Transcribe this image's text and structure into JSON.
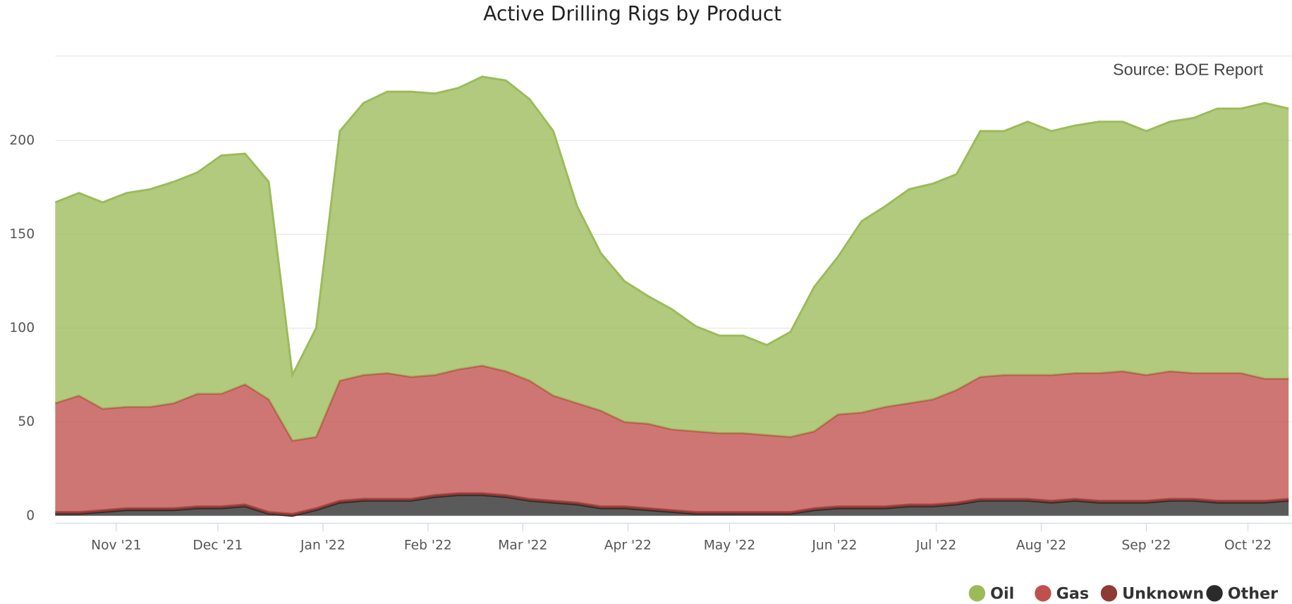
{
  "chart_data": {
    "type": "stacked_area",
    "title": "Active Drilling Rigs by Product",
    "annotation": "Source: BOE Report",
    "xlim": [
      0,
      365
    ],
    "xticks": [
      {
        "value": 18,
        "label": "Nov '21"
      },
      {
        "value": 48,
        "label": "Dec '21"
      },
      {
        "value": 79,
        "label": "Jan '22"
      },
      {
        "value": 110,
        "label": "Feb '22"
      },
      {
        "value": 138,
        "label": "Mar '22"
      },
      {
        "value": 169,
        "label": "Apr '22"
      },
      {
        "value": 199,
        "label": "May '22"
      },
      {
        "value": 230,
        "label": "Jun '22"
      },
      {
        "value": 260,
        "label": "Jul '22"
      },
      {
        "value": 291,
        "label": "Aug '22"
      },
      {
        "value": 322,
        "label": "Sep '22"
      },
      {
        "value": 352,
        "label": "Oct '22"
      }
    ],
    "ylim": [
      -4,
      245
    ],
    "yticks": [
      0,
      50,
      100,
      150,
      200
    ],
    "grid": true,
    "legend": "bottom-right",
    "x": [
      0,
      7,
      14,
      21,
      28,
      35,
      42,
      49,
      56,
      63,
      70,
      77,
      84,
      91,
      98,
      105,
      112,
      119,
      126,
      133,
      140,
      147,
      154,
      161,
      168,
      175,
      182,
      189,
      196,
      203,
      210,
      217,
      224,
      231,
      238,
      245,
      252,
      259,
      266,
      273,
      280,
      287,
      294,
      301,
      308,
      315,
      322,
      329,
      336,
      343,
      350,
      357,
      364
    ],
    "series": [
      {
        "name": "Other",
        "color": "#2b2b2b",
        "values": [
          1,
          1,
          2,
          3,
          3,
          3,
          4,
          4,
          5,
          1,
          0,
          3,
          7,
          8,
          8,
          8,
          10,
          11,
          11,
          10,
          8,
          7,
          6,
          4,
          4,
          3,
          2,
          1,
          1,
          1,
          1,
          1,
          3,
          4,
          4,
          4,
          5,
          5,
          6,
          8,
          8,
          8,
          7,
          8,
          7,
          7,
          7,
          8,
          8,
          7,
          7,
          7,
          8
        ]
      },
      {
        "name": "Unknown",
        "color": "#8e3b36",
        "values": [
          1,
          1,
          1,
          1,
          1,
          1,
          1,
          1,
          1,
          1,
          1,
          1,
          1,
          1,
          1,
          1,
          1,
          1,
          1,
          1,
          1,
          1,
          1,
          1,
          1,
          1,
          1,
          1,
          1,
          1,
          1,
          1,
          1,
          1,
          1,
          1,
          1,
          1,
          1,
          1,
          1,
          1,
          1,
          1,
          1,
          1,
          1,
          1,
          1,
          1,
          1,
          1,
          1
        ]
      },
      {
        "name": "Gas",
        "color": "#c0504d",
        "values": [
          58,
          62,
          54,
          54,
          54,
          56,
          60,
          60,
          64,
          60,
          39,
          38,
          64,
          66,
          67,
          65,
          64,
          66,
          68,
          66,
          63,
          56,
          53,
          51,
          45,
          45,
          43,
          43,
          42,
          42,
          41,
          40,
          41,
          49,
          50,
          53,
          54,
          56,
          60,
          65,
          66,
          66,
          67,
          67,
          68,
          69,
          67,
          68,
          67,
          68,
          68,
          65,
          64
        ]
      },
      {
        "name": "Oil",
        "color": "#9bbb59",
        "values": [
          107,
          108,
          110,
          114,
          116,
          118,
          118,
          127,
          123,
          116,
          35,
          58,
          133,
          145,
          150,
          152,
          150,
          150,
          154,
          155,
          150,
          141,
          105,
          84,
          75,
          68,
          64,
          56,
          52,
          52,
          48,
          56,
          77,
          84,
          102,
          107,
          114,
          115,
          115,
          131,
          130,
          135,
          130,
          132,
          134,
          133,
          130,
          133,
          136,
          141,
          141,
          147,
          144
        ]
      }
    ]
  }
}
